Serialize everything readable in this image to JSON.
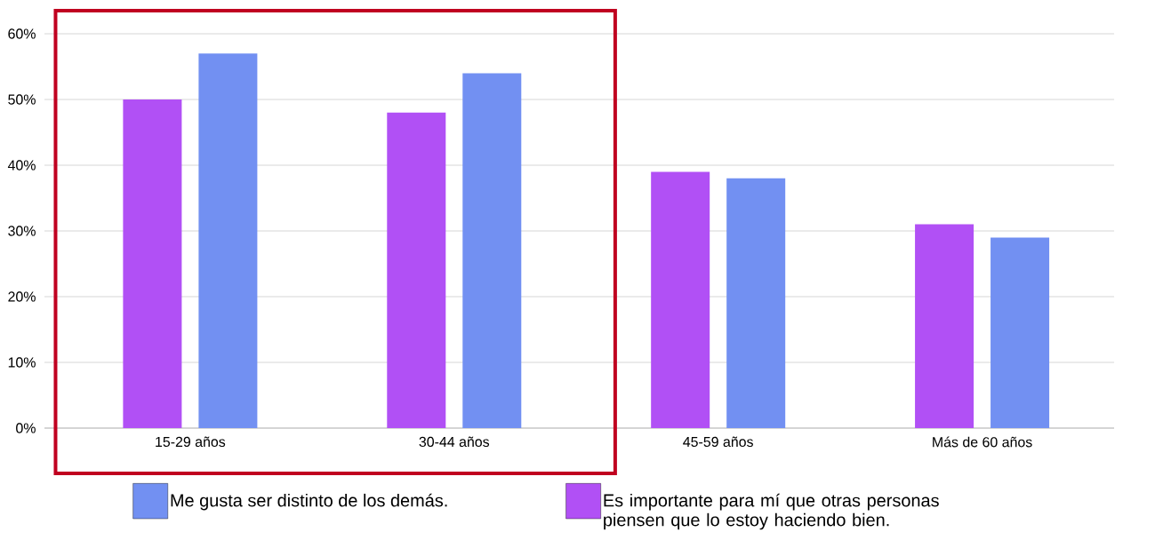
{
  "chart_data": {
    "type": "bar",
    "categories": [
      "15-29 años",
      "30-44 años",
      "45-59 años",
      "Más de 60 años"
    ],
    "series": [
      {
        "name": "Es importante para mí que otras personas piensen que lo estoy haciendo bien.",
        "color": "#b150f5",
        "values": [
          50,
          48,
          39,
          31
        ]
      },
      {
        "name": "Me gusta ser distinto de los demás.",
        "color": "#7290f2",
        "values": [
          57,
          54,
          38,
          29
        ]
      }
    ],
    "ylim": [
      0,
      60
    ],
    "yticks": [
      {
        "value": 0,
        "label": "0%"
      },
      {
        "value": 10,
        "label": "10%"
      },
      {
        "value": 20,
        "label": "20%"
      },
      {
        "value": 30,
        "label": "30%"
      },
      {
        "value": 40,
        "label": "40%"
      },
      {
        "value": 50,
        "label": "50%"
      },
      {
        "value": 60,
        "label": "60%"
      }
    ],
    "grid": "y",
    "legend": "bottom"
  }
}
